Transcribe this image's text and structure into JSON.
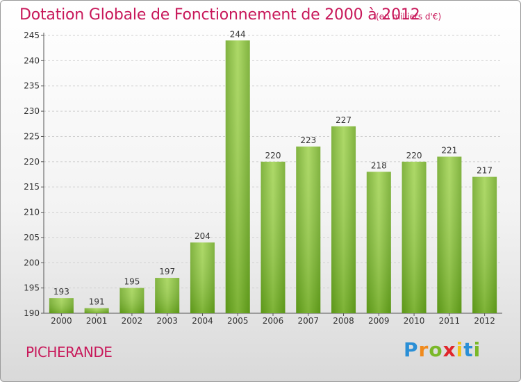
{
  "chart_data": {
    "type": "bar",
    "title": "Dotation Globale de Fonctionnement de 2000 à 2012",
    "subtitle": "(en milliers d'€)",
    "categories": [
      "2000",
      "2001",
      "2002",
      "2003",
      "2004",
      "2005",
      "2006",
      "2007",
      "2008",
      "2009",
      "2010",
      "2011",
      "2012"
    ],
    "values": [
      193,
      191,
      195,
      197,
      204,
      244,
      220,
      223,
      227,
      218,
      220,
      221,
      217
    ],
    "ylim": [
      190,
      245
    ],
    "yticks": [
      190,
      195,
      200,
      205,
      210,
      215,
      220,
      225,
      230,
      235,
      240,
      245
    ],
    "grid": true,
    "bar_color": "#7ab828"
  },
  "footer": {
    "city": "PICHERANDE",
    "brand_letters": [
      {
        "ch": "P",
        "color": "#2a8fd6"
      },
      {
        "ch": "r",
        "color": "#f08a1c"
      },
      {
        "ch": "o",
        "color": "#7ab828"
      },
      {
        "ch": "x",
        "color": "#e0262b"
      },
      {
        "ch": "i",
        "color": "#f0c419"
      },
      {
        "ch": "t",
        "color": "#2a8fd6"
      },
      {
        "ch": "i",
        "color": "#7ab828"
      }
    ]
  }
}
